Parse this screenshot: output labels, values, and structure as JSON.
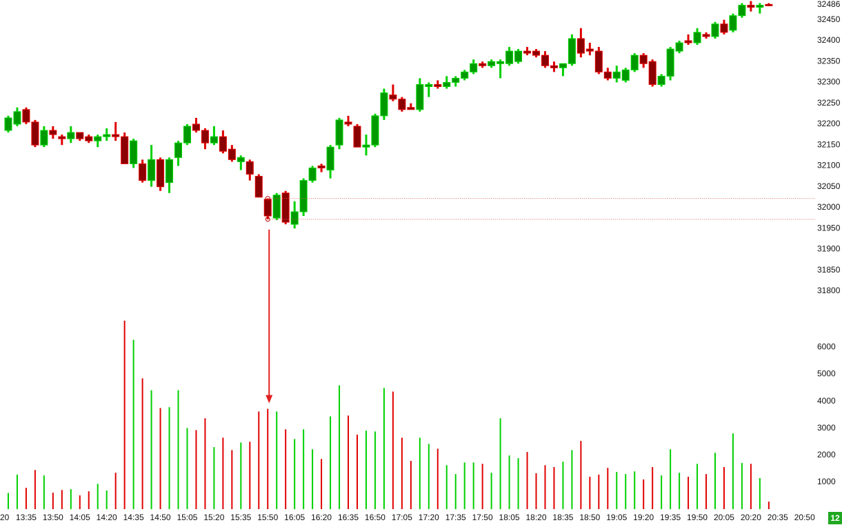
{
  "chart_data": {
    "type": "candlestick",
    "open": [
      32185,
      32200,
      32235,
      32205,
      32150,
      32185,
      32170,
      32165,
      32180,
      32170,
      32160,
      32170,
      32175,
      32170,
      32105,
      32105,
      32065,
      32115,
      32060,
      32120,
      32155,
      32200,
      32185,
      32155,
      32170,
      32140,
      32110,
      32110,
      32075,
      32020,
      31975,
      32035,
      31960,
      31990,
      32065,
      32100,
      32090,
      32150,
      32205,
      32195,
      32145,
      32150,
      32220,
      32270,
      32260,
      32240,
      32235,
      32290,
      32295,
      32290,
      32300,
      32310,
      32325,
      32345,
      32340,
      32345,
      32345,
      32350,
      32375,
      32375,
      32365,
      32340,
      32335,
      32345,
      32405,
      32380,
      32375,
      32325,
      32310,
      32305,
      32330,
      32365,
      32350,
      32295,
      32315,
      32375,
      32400,
      32395,
      32415,
      32410,
      32440,
      32425,
      32460,
      32485,
      32480,
      32487
    ],
    "high": [
      32220,
      32240,
      32240,
      32210,
      32195,
      32195,
      32175,
      32195,
      32180,
      32175,
      32175,
      32190,
      32205,
      32180,
      32165,
      32115,
      32150,
      32120,
      32120,
      32160,
      32200,
      32215,
      32190,
      32195,
      32185,
      32150,
      32125,
      32115,
      32080,
      32022,
      32035,
      32040,
      32015,
      32070,
      32100,
      32105,
      32150,
      32215,
      32220,
      32200,
      32175,
      32225,
      32285,
      32295,
      32265,
      32250,
      32310,
      32300,
      32305,
      32315,
      32315,
      32330,
      32355,
      32350,
      32355,
      32355,
      32385,
      32380,
      32385,
      32380,
      32375,
      32350,
      32345,
      32415,
      32430,
      32395,
      32385,
      32335,
      32340,
      32335,
      32370,
      32370,
      32355,
      32320,
      32385,
      32400,
      32415,
      32430,
      32420,
      32445,
      32450,
      32465,
      32490,
      32495,
      32490,
      32490
    ],
    "low": [
      32180,
      32195,
      32200,
      32145,
      32145,
      32165,
      32150,
      32155,
      32160,
      32155,
      32145,
      32160,
      32160,
      32105,
      32095,
      32060,
      32050,
      32040,
      32035,
      32100,
      32150,
      32180,
      32140,
      32150,
      32130,
      32110,
      32090,
      32065,
      32025,
      31972,
      31970,
      31960,
      31950,
      31980,
      32060,
      32085,
      32070,
      32140,
      32195,
      32145,
      32125,
      32145,
      32210,
      32255,
      32230,
      32235,
      32230,
      32265,
      32285,
      32285,
      32290,
      32305,
      32320,
      32335,
      32335,
      32310,
      32340,
      32345,
      32365,
      32360,
      32335,
      32325,
      32315,
      32340,
      32360,
      32365,
      32320,
      32305,
      32300,
      32300,
      32325,
      32335,
      32290,
      32290,
      32305,
      32370,
      32390,
      32390,
      32405,
      32405,
      32415,
      32420,
      32455,
      32470,
      32465,
      32483
    ],
    "close": [
      32215,
      32230,
      32205,
      32150,
      32185,
      32175,
      32165,
      32180,
      32165,
      32160,
      32170,
      32175,
      32170,
      32105,
      32160,
      32065,
      32115,
      32050,
      32115,
      32155,
      32195,
      32185,
      32155,
      32170,
      32135,
      32115,
      32120,
      32080,
      32025,
      31980,
      32030,
      31965,
      31990,
      32065,
      32095,
      32095,
      32145,
      32210,
      32200,
      32145,
      32150,
      32220,
      32275,
      32260,
      32235,
      32235,
      32295,
      32295,
      32290,
      32300,
      32310,
      32325,
      32345,
      32340,
      32350,
      32350,
      32375,
      32375,
      32370,
      32365,
      32340,
      32335,
      32345,
      32405,
      32370,
      32375,
      32325,
      32310,
      32325,
      32330,
      32365,
      32345,
      32295,
      32315,
      32380,
      32395,
      32395,
      32420,
      32410,
      32440,
      32420,
      32460,
      32485,
      32480,
      32485,
      32486
    ],
    "volume": [
      600,
      1280,
      790,
      1450,
      1250,
      610,
      710,
      740,
      510,
      660,
      940,
      690,
      1350,
      6990,
      6280,
      4850,
      4410,
      3750,
      3780,
      4410,
      3010,
      2930,
      3370,
      2300,
      2650,
      2190,
      2470,
      2500,
      3620,
      3720,
      3620,
      2960,
      2600,
      2960,
      2220,
      1860,
      3440,
      4590,
      3470,
      2760,
      2910,
      2880,
      4490,
      4360,
      2650,
      1790,
      2650,
      2420,
      2240,
      1630,
      1300,
      1730,
      1730,
      1680,
      1350,
      3370,
      1990,
      1890,
      2120,
      1330,
      1630,
      1560,
      1760,
      2190,
      2530,
      1200,
      1280,
      1530,
      1380,
      1300,
      1400,
      1100,
      1560,
      1250,
      2220,
      1350,
      1200,
      1680,
      1300,
      2090,
      1560,
      2810,
      1710,
      1680,
      1150,
      280
    ],
    "xticks": [
      "20",
      "13:35",
      "13:50",
      "14:05",
      "14:20",
      "14:35",
      "14:50",
      "15:05",
      "15:20",
      "15:35",
      "15:50",
      "16:05",
      "16:20",
      "16:35",
      "16:50",
      "17:05",
      "17:20",
      "17:35",
      "17:50",
      "18:05",
      "18:20",
      "18:35",
      "18:50",
      "19:05",
      "19:20",
      "19:35",
      "19:50",
      "20:05",
      "20:20",
      "20:35",
      "20:50"
    ],
    "ylim": [
      31780,
      32497.5
    ],
    "yticks": [
      32450,
      32400,
      32350,
      32300,
      32250,
      32200,
      32150,
      32100,
      32050,
      32000,
      31950,
      31900,
      31850,
      31800
    ],
    "volume_ylim": [
      0,
      7015
    ],
    "volume_yticks": [
      1000,
      2000,
      3000,
      4000,
      5000,
      6000
    ],
    "up_color": "#00d000",
    "down_color": "#e00000",
    "highlight_bar": 29,
    "badge": "12"
  }
}
